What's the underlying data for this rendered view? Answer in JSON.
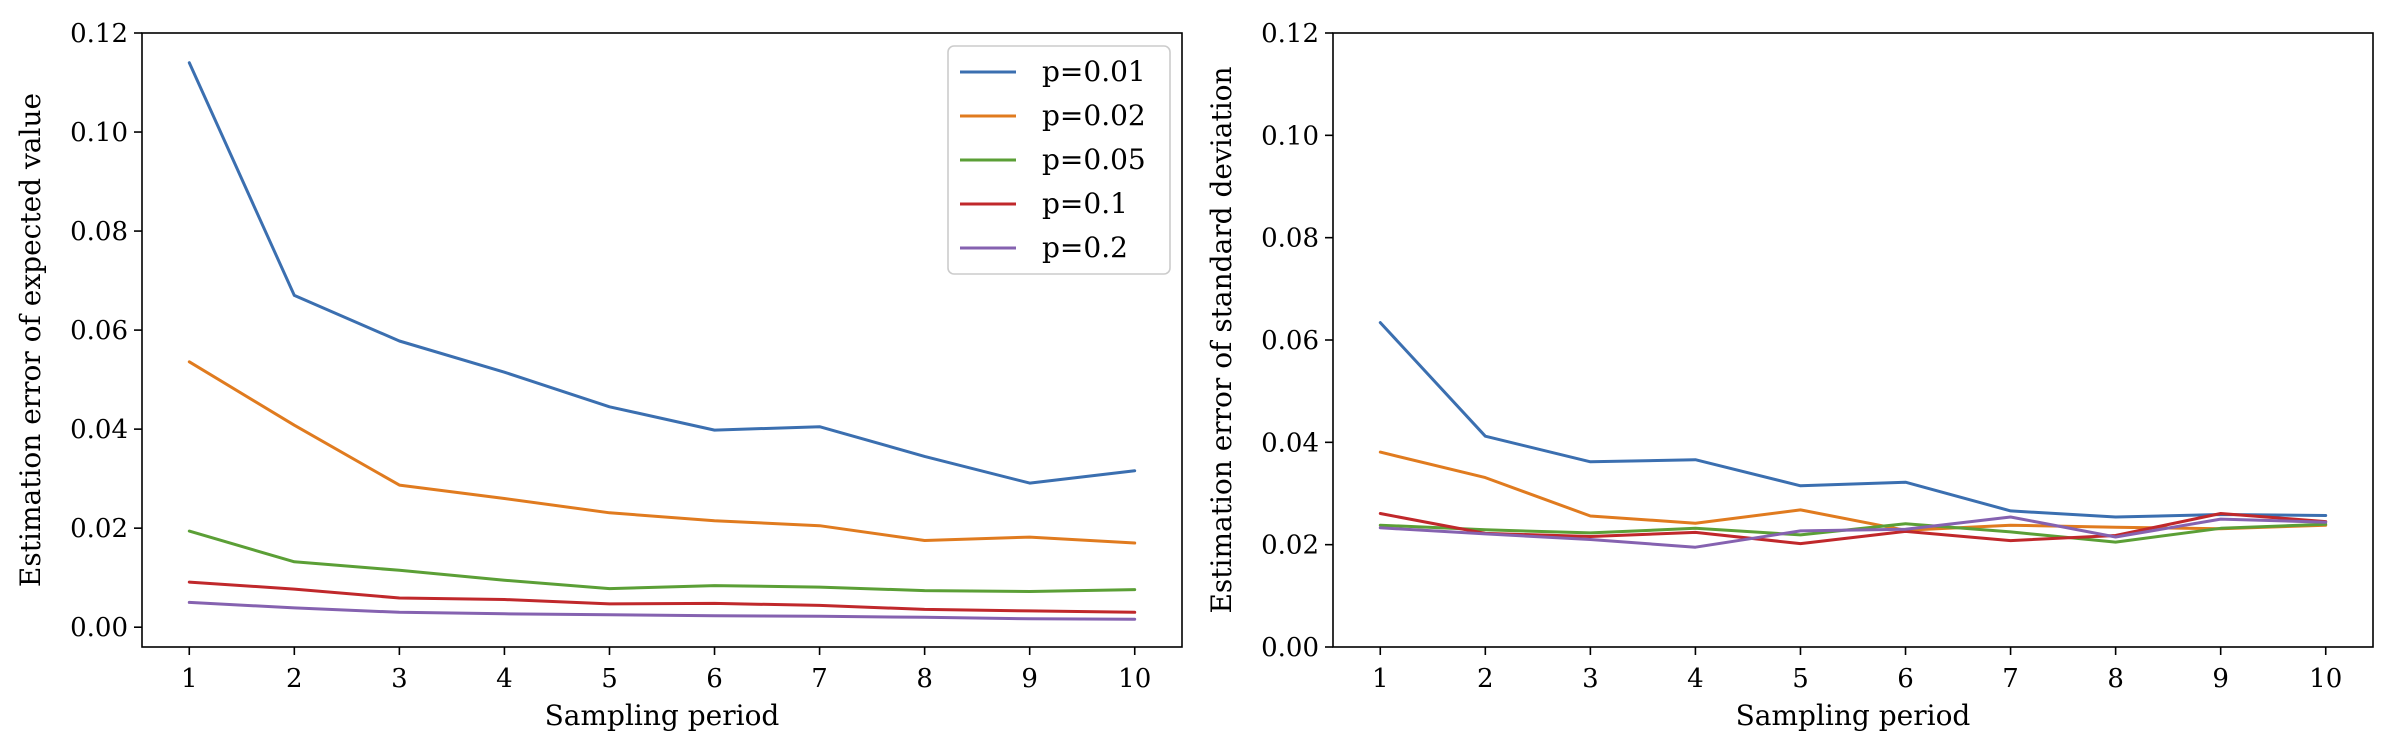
{
  "chart_data": [
    {
      "type": "line",
      "title": "",
      "xlabel": "Sampling period",
      "ylabel": "Estimation error of expected value",
      "x": [
        1,
        2,
        3,
        4,
        5,
        6,
        7,
        8,
        9,
        10
      ],
      "xticks": [
        "1",
        "2",
        "3",
        "4",
        "5",
        "6",
        "7",
        "8",
        "9",
        "10"
      ],
      "ylim": [
        -0.004,
        0.12
      ],
      "yticks": [
        0.0,
        0.02,
        0.04,
        0.06,
        0.08,
        0.1,
        0.12
      ],
      "ytick_labels": [
        "0.00",
        "0.02",
        "0.04",
        "0.06",
        "0.08",
        "0.10",
        "0.12"
      ],
      "legend": "top-right",
      "series": [
        {
          "name": "p=0.01",
          "color": "#3b6fb0",
          "values": [
            0.114,
            0.067,
            0.0578,
            0.0515,
            0.0445,
            0.0398,
            0.0405,
            0.0345,
            0.0291,
            0.0316
          ]
        },
        {
          "name": "p=0.02",
          "color": "#e07b1f",
          "values": [
            0.0536,
            0.0408,
            0.0287,
            0.026,
            0.0231,
            0.0215,
            0.0205,
            0.0175,
            0.0182,
            0.017
          ]
        },
        {
          "name": "p=0.05",
          "color": "#5b9f36",
          "values": [
            0.0194,
            0.0132,
            0.0115,
            0.0095,
            0.0078,
            0.0084,
            0.0081,
            0.0074,
            0.0072,
            0.0076
          ]
        },
        {
          "name": "p=0.1",
          "color": "#c0282b",
          "values": [
            0.0091,
            0.0077,
            0.0059,
            0.0056,
            0.0047,
            0.0048,
            0.0044,
            0.0036,
            0.0033,
            0.003
          ]
        },
        {
          "name": "p=0.2",
          "color": "#8562b0",
          "values": [
            0.005,
            0.0039,
            0.003,
            0.0027,
            0.0025,
            0.0023,
            0.0022,
            0.002,
            0.0017,
            0.0016
          ]
        }
      ]
    },
    {
      "type": "line",
      "title": "",
      "xlabel": "Sampling period",
      "ylabel": "Estimation error of standard deviation",
      "x": [
        1,
        2,
        3,
        4,
        5,
        6,
        7,
        8,
        9,
        10
      ],
      "xticks": [
        "1",
        "2",
        "3",
        "4",
        "5",
        "6",
        "7",
        "8",
        "9",
        "10"
      ],
      "ylim": [
        0.0,
        0.12
      ],
      "yticks": [
        0.0,
        0.02,
        0.04,
        0.06,
        0.08,
        0.1,
        0.12
      ],
      "ytick_labels": [
        "0.00",
        "0.02",
        "0.04",
        "0.06",
        "0.08",
        "0.10",
        "0.12"
      ],
      "legend": "none",
      "series": [
        {
          "name": "p=0.01",
          "color": "#3b6fb0",
          "values": [
            0.0634,
            0.0412,
            0.0362,
            0.0366,
            0.0315,
            0.0322,
            0.0266,
            0.0254,
            0.0259,
            0.0257
          ]
        },
        {
          "name": "p=0.02",
          "color": "#e07b1f",
          "values": [
            0.0381,
            0.0331,
            0.0256,
            0.0242,
            0.0268,
            0.0228,
            0.0238,
            0.0234,
            0.0231,
            0.0238
          ]
        },
        {
          "name": "p=0.05",
          "color": "#5b9f36",
          "values": [
            0.0238,
            0.0229,
            0.0223,
            0.0232,
            0.0219,
            0.0241,
            0.0225,
            0.0205,
            0.0232,
            0.024
          ]
        },
        {
          "name": "p=0.1",
          "color": "#c0282b",
          "values": [
            0.0261,
            0.0222,
            0.0216,
            0.0224,
            0.0202,
            0.0226,
            0.0208,
            0.0218,
            0.0261,
            0.0245
          ]
        },
        {
          "name": "p=0.2",
          "color": "#8562b0",
          "values": [
            0.0233,
            0.0221,
            0.021,
            0.0195,
            0.0227,
            0.023,
            0.0254,
            0.0215,
            0.025,
            0.0244
          ]
        }
      ]
    }
  ]
}
